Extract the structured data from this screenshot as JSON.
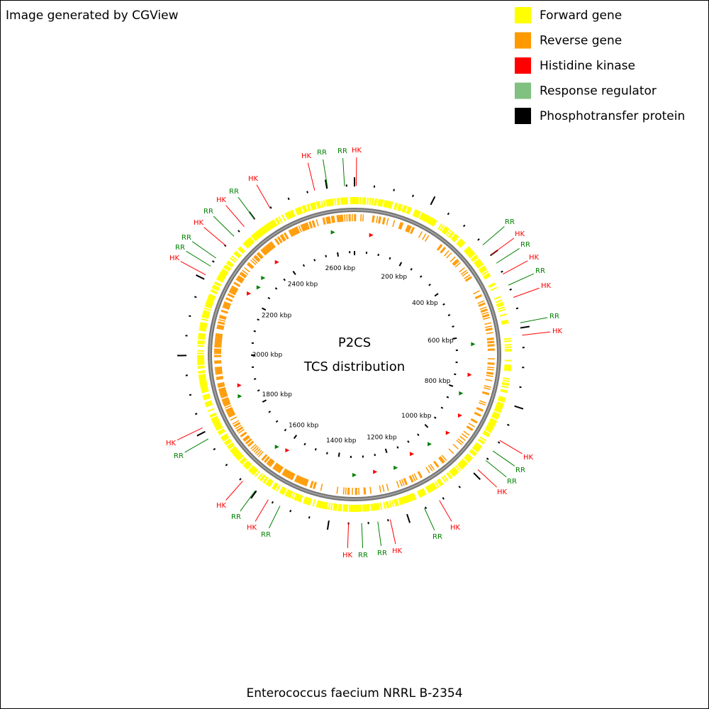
{
  "header": {
    "credit": "Image generated by CGView"
  },
  "legend": [
    {
      "label": "Forward gene",
      "color": "#ffff00"
    },
    {
      "label": "Reverse gene",
      "color": "#ff9900"
    },
    {
      "label": "Histidine kinase",
      "color": "#ff0000"
    },
    {
      "label": "Response regulator",
      "color": "#80c080"
    },
    {
      "label": "Phosphotransfer protein",
      "color": "#000000"
    }
  ],
  "center": {
    "title": "P2CS",
    "subtitle": "TCS distribution"
  },
  "footer": {
    "organism": "Enterococcus faecium NRRL B-2354"
  },
  "kbp_labels": [
    "200 kbp",
    "400 kbp",
    "600 kbp",
    "800 kbp",
    "1000 kbp",
    "1200 kbp",
    "1400 kbp",
    "1600 kbp",
    "1800 kbp",
    "2000 kbp",
    "2200 kbp",
    "2400 kbp",
    "2600 kbp"
  ],
  "feature_labels": [
    "HK",
    "RR",
    "RR",
    "HK",
    "HK",
    "RR",
    "HK",
    "RR",
    "HK",
    "RR",
    "RR",
    "HK",
    "RR",
    "HK",
    "RR",
    "HK",
    "RR",
    "HK",
    "RR",
    "HK",
    "HK",
    "RR",
    "RR",
    "HK",
    "HK",
    "RR",
    "HK",
    "RR",
    "RR",
    "HK",
    "RR",
    "HK",
    "RR",
    "HK",
    "RR",
    "HK"
  ]
}
